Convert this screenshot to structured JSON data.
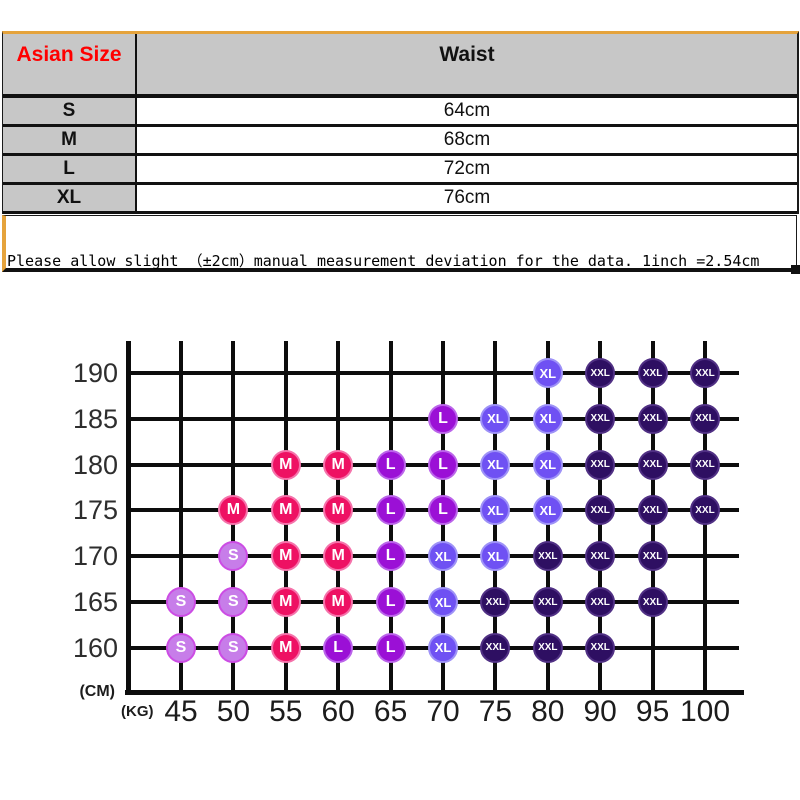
{
  "size_table": {
    "columns": [
      "Asian Size",
      "Waist"
    ],
    "rows": [
      {
        "size": "S",
        "waist": "64cm"
      },
      {
        "size": "M",
        "waist": "68cm"
      },
      {
        "size": "L",
        "waist": "72cm"
      },
      {
        "size": "XL",
        "waist": "76cm"
      }
    ],
    "note": "Please allow slight （±2cm）manual measurement deviation for the data. 1inch =2.54cm",
    "colors": {
      "header_text": "#ff0000",
      "header_bg": "#c7c7c7",
      "accent_line": "#e5a33c",
      "border": "#111111"
    }
  },
  "chart_data": {
    "type": "scatter",
    "title": "",
    "x_label": "(KG)",
    "y_label": "(CM)",
    "x_ticks": [
      45,
      50,
      55,
      60,
      65,
      70,
      75,
      80,
      90,
      95,
      100
    ],
    "y_ticks": [
      190,
      185,
      180,
      175,
      170,
      165,
      160
    ],
    "grid": true,
    "legend": "none",
    "size_styles": {
      "S": {
        "fill": "#c77de9",
        "ring": "#cc4ce4"
      },
      "M": {
        "fill": "#ee1163",
        "ring": "#f573ab"
      },
      "L": {
        "fill": "#9b10d6",
        "ring": "#bb64ea"
      },
      "XL": {
        "fill": "#6f51f3",
        "ring": "#9e92f7"
      },
      "XXL": {
        "fill": "#2e0f62",
        "ring": "#503084"
      }
    },
    "points": [
      {
        "height": 190,
        "weight": 80,
        "size": "XL"
      },
      {
        "height": 190,
        "weight": 90,
        "size": "XXL"
      },
      {
        "height": 190,
        "weight": 95,
        "size": "XXL"
      },
      {
        "height": 190,
        "weight": 100,
        "size": "XXL"
      },
      {
        "height": 185,
        "weight": 70,
        "size": "L"
      },
      {
        "height": 185,
        "weight": 75,
        "size": "XL"
      },
      {
        "height": 185,
        "weight": 80,
        "size": "XL"
      },
      {
        "height": 185,
        "weight": 90,
        "size": "XXL"
      },
      {
        "height": 185,
        "weight": 95,
        "size": "XXL"
      },
      {
        "height": 185,
        "weight": 100,
        "size": "XXL"
      },
      {
        "height": 180,
        "weight": 55,
        "size": "M"
      },
      {
        "height": 180,
        "weight": 60,
        "size": "M"
      },
      {
        "height": 180,
        "weight": 65,
        "size": "L"
      },
      {
        "height": 180,
        "weight": 70,
        "size": "L"
      },
      {
        "height": 180,
        "weight": 75,
        "size": "XL"
      },
      {
        "height": 180,
        "weight": 80,
        "size": "XL"
      },
      {
        "height": 180,
        "weight": 90,
        "size": "XXL"
      },
      {
        "height": 180,
        "weight": 95,
        "size": "XXL"
      },
      {
        "height": 180,
        "weight": 100,
        "size": "XXL"
      },
      {
        "height": 175,
        "weight": 50,
        "size": "M"
      },
      {
        "height": 175,
        "weight": 55,
        "size": "M"
      },
      {
        "height": 175,
        "weight": 60,
        "size": "M"
      },
      {
        "height": 175,
        "weight": 65,
        "size": "L"
      },
      {
        "height": 175,
        "weight": 70,
        "size": "L"
      },
      {
        "height": 175,
        "weight": 75,
        "size": "XL"
      },
      {
        "height": 175,
        "weight": 80,
        "size": "XL"
      },
      {
        "height": 175,
        "weight": 90,
        "size": "XXL"
      },
      {
        "height": 175,
        "weight": 95,
        "size": "XXL"
      },
      {
        "height": 175,
        "weight": 100,
        "size": "XXL"
      },
      {
        "height": 170,
        "weight": 50,
        "size": "S"
      },
      {
        "height": 170,
        "weight": 55,
        "size": "M"
      },
      {
        "height": 170,
        "weight": 60,
        "size": "M"
      },
      {
        "height": 170,
        "weight": 65,
        "size": "L"
      },
      {
        "height": 170,
        "weight": 70,
        "size": "XL"
      },
      {
        "height": 170,
        "weight": 75,
        "size": "XL"
      },
      {
        "height": 170,
        "weight": 80,
        "size": "XXL"
      },
      {
        "height": 170,
        "weight": 90,
        "size": "XXL"
      },
      {
        "height": 170,
        "weight": 95,
        "size": "XXL"
      },
      {
        "height": 165,
        "weight": 45,
        "size": "S"
      },
      {
        "height": 165,
        "weight": 50,
        "size": "S"
      },
      {
        "height": 165,
        "weight": 55,
        "size": "M"
      },
      {
        "height": 165,
        "weight": 60,
        "size": "M"
      },
      {
        "height": 165,
        "weight": 65,
        "size": "L"
      },
      {
        "height": 165,
        "weight": 70,
        "size": "XL"
      },
      {
        "height": 165,
        "weight": 75,
        "size": "XXL"
      },
      {
        "height": 165,
        "weight": 80,
        "size": "XXL"
      },
      {
        "height": 165,
        "weight": 90,
        "size": "XXL"
      },
      {
        "height": 165,
        "weight": 95,
        "size": "XXL"
      },
      {
        "height": 160,
        "weight": 45,
        "size": "S"
      },
      {
        "height": 160,
        "weight": 50,
        "size": "S"
      },
      {
        "height": 160,
        "weight": 55,
        "size": "M"
      },
      {
        "height": 160,
        "weight": 60,
        "size": "L"
      },
      {
        "height": 160,
        "weight": 65,
        "size": "L"
      },
      {
        "height": 160,
        "weight": 70,
        "size": "XL"
      },
      {
        "height": 160,
        "weight": 75,
        "size": "XXL"
      },
      {
        "height": 160,
        "weight": 80,
        "size": "XXL"
      },
      {
        "height": 160,
        "weight": 90,
        "size": "XXL"
      }
    ]
  }
}
